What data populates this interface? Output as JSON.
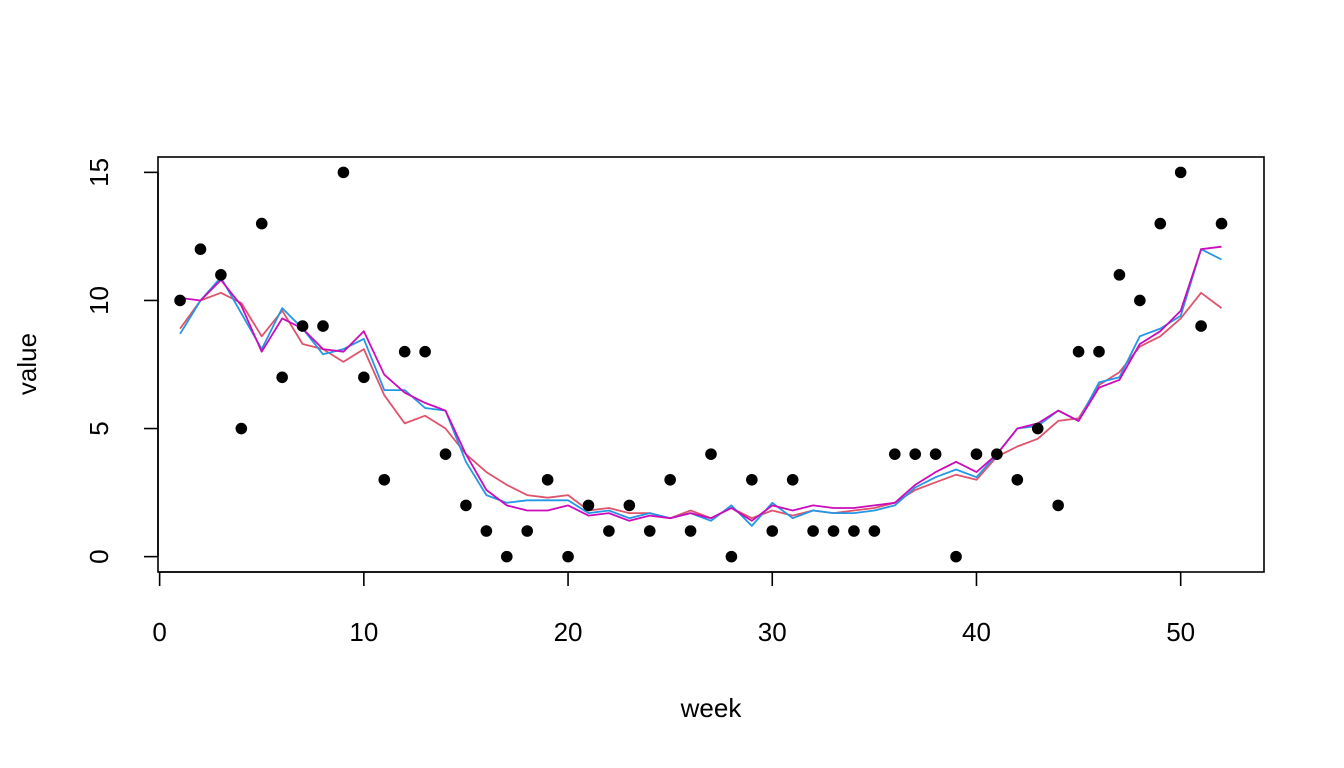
{
  "chart_data": {
    "type": "scatter",
    "title": "",
    "xlabel": "week",
    "ylabel": "value",
    "xlim": [
      -0.08,
      54.08
    ],
    "ylim": [
      -0.6,
      15.6
    ],
    "xticks": [
      0,
      10,
      20,
      30,
      40,
      50
    ],
    "yticks": [
      0,
      5,
      10,
      15
    ],
    "grid": false,
    "legend": "none",
    "points": {
      "x": [
        1,
        2,
        3,
        4,
        5,
        6,
        7,
        8,
        9,
        10,
        11,
        12,
        13,
        14,
        15,
        16,
        17,
        18,
        19,
        20,
        21,
        22,
        23,
        24,
        25,
        26,
        27,
        28,
        29,
        30,
        31,
        32,
        33,
        34,
        35,
        36,
        37,
        38,
        39,
        40,
        41,
        42,
        43,
        44,
        45,
        46,
        47,
        48,
        49,
        50,
        51,
        52
      ],
      "y": [
        10,
        12,
        11,
        5,
        13,
        7,
        9,
        9,
        15,
        7,
        3,
        8,
        8,
        4,
        2,
        1,
        0,
        1,
        3,
        0,
        2,
        1,
        2,
        1,
        3,
        1,
        4,
        0,
        3,
        1,
        3,
        1,
        1,
        1,
        1,
        4,
        4,
        4,
        0,
        4,
        4,
        3,
        5,
        2,
        8,
        8,
        11,
        10,
        13,
        15,
        9,
        13
      ],
      "color": "#000000"
    },
    "series": [
      {
        "color": "#DF536B",
        "x": [
          1,
          2,
          3,
          4,
          5,
          6,
          7,
          8,
          9,
          10,
          11,
          12,
          13,
          14,
          15,
          16,
          17,
          18,
          19,
          20,
          21,
          22,
          23,
          24,
          25,
          26,
          27,
          28,
          29,
          30,
          31,
          32,
          33,
          34,
          35,
          36,
          37,
          38,
          39,
          40,
          41,
          42,
          43,
          44,
          45,
          46,
          47,
          48,
          49,
          50,
          51,
          52
        ],
        "values": [
          8.9,
          10.0,
          10.3,
          9.9,
          8.6,
          9.6,
          8.3,
          8.1,
          7.6,
          8.1,
          6.3,
          5.2,
          5.5,
          5.0,
          4.0,
          3.3,
          2.8,
          2.4,
          2.3,
          2.4,
          1.8,
          1.9,
          1.7,
          1.7,
          1.5,
          1.8,
          1.5,
          1.9,
          1.5,
          1.8,
          1.6,
          1.8,
          1.7,
          1.8,
          1.9,
          2.1,
          2.6,
          2.9,
          3.2,
          3.0,
          3.9,
          4.3,
          4.6,
          5.3,
          5.4,
          6.7,
          7.2,
          8.2,
          8.6,
          9.3,
          10.3,
          9.7
        ]
      },
      {
        "color": "#2297E6",
        "x": [
          1,
          2,
          3,
          4,
          5,
          6,
          7,
          8,
          9,
          10,
          11,
          12,
          13,
          14,
          15,
          16,
          17,
          18,
          19,
          20,
          21,
          22,
          23,
          24,
          25,
          26,
          27,
          28,
          29,
          30,
          31,
          32,
          33,
          34,
          35,
          36,
          37,
          38,
          39,
          40,
          41,
          42,
          43,
          44,
          45,
          46,
          47,
          48,
          49,
          50,
          51,
          52
        ],
        "values": [
          8.7,
          10.0,
          10.9,
          9.5,
          8.1,
          9.7,
          8.9,
          7.9,
          8.1,
          8.5,
          6.5,
          6.5,
          5.8,
          5.7,
          3.7,
          2.4,
          2.1,
          2.2,
          2.2,
          2.2,
          1.7,
          1.8,
          1.5,
          1.7,
          1.5,
          1.7,
          1.4,
          2.0,
          1.2,
          2.1,
          1.5,
          1.8,
          1.7,
          1.7,
          1.8,
          2.0,
          2.7,
          3.1,
          3.4,
          3.1,
          4.0,
          5.0,
          5.1,
          5.7,
          5.3,
          6.8,
          7.0,
          8.6,
          8.9,
          9.4,
          12.0,
          11.6
        ]
      },
      {
        "color": "#CD0BBC",
        "x": [
          1,
          2,
          3,
          4,
          5,
          6,
          7,
          8,
          9,
          10,
          11,
          12,
          13,
          14,
          15,
          16,
          17,
          18,
          19,
          20,
          21,
          22,
          23,
          24,
          25,
          26,
          27,
          28,
          29,
          30,
          31,
          32,
          33,
          34,
          35,
          36,
          37,
          38,
          39,
          40,
          41,
          42,
          43,
          44,
          45,
          46,
          47,
          48,
          49,
          50,
          51,
          52
        ],
        "values": [
          10.1,
          10.0,
          10.8,
          9.8,
          8.0,
          9.3,
          8.9,
          8.1,
          8.0,
          8.8,
          7.1,
          6.4,
          6.0,
          5.7,
          4.0,
          2.6,
          2.0,
          1.8,
          1.8,
          2.0,
          1.6,
          1.7,
          1.4,
          1.6,
          1.5,
          1.7,
          1.5,
          1.9,
          1.4,
          2.0,
          1.8,
          2.0,
          1.9,
          1.9,
          2.0,
          2.1,
          2.8,
          3.3,
          3.7,
          3.3,
          4.0,
          5.0,
          5.2,
          5.7,
          5.3,
          6.6,
          6.9,
          8.3,
          8.8,
          9.6,
          12.0,
          12.1
        ]
      }
    ]
  }
}
